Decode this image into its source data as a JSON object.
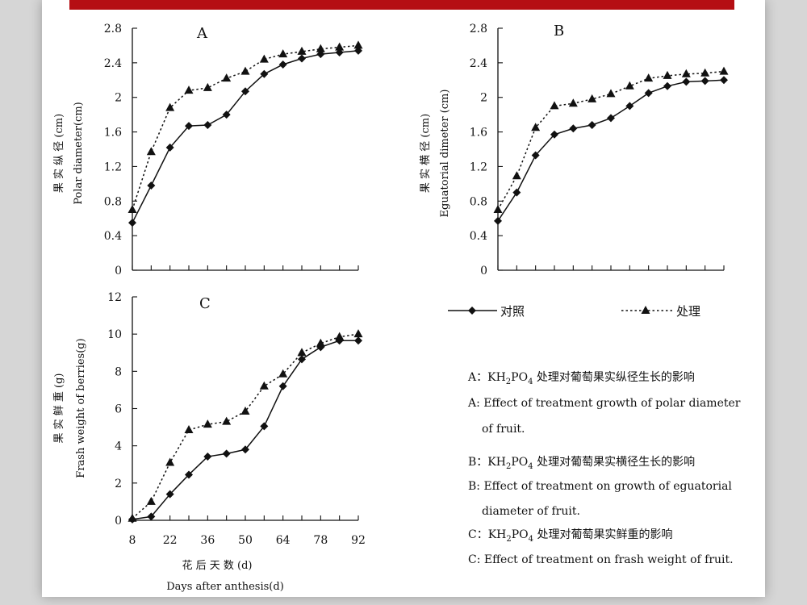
{
  "chart_data": [
    {
      "type": "line",
      "panel": "A",
      "ylabel_cn": "果 实 纵 径 (cm)",
      "ylabel_en": "Polar diameter(cm)",
      "ylim": [
        0,
        2.8
      ],
      "yticks": [
        "0",
        "0.4",
        "0.8",
        "1.2",
        "1.6",
        "2",
        "2.4",
        "2.8"
      ],
      "x": [
        8,
        15,
        22,
        29,
        36,
        43,
        50,
        57,
        64,
        71,
        78,
        85,
        92
      ],
      "series": [
        {
          "name": "对照",
          "marker": "diamond",
          "style": "solid",
          "values": [
            0.55,
            0.98,
            1.42,
            1.67,
            1.68,
            1.8,
            2.07,
            2.27,
            2.38,
            2.45,
            2.5,
            2.52,
            2.54
          ]
        },
        {
          "name": "处理",
          "marker": "triangle",
          "style": "dotted",
          "values": [
            0.7,
            1.37,
            1.88,
            2.08,
            2.11,
            2.22,
            2.3,
            2.44,
            2.5,
            2.53,
            2.56,
            2.58,
            2.6
          ]
        }
      ],
      "grid": false
    },
    {
      "type": "line",
      "panel": "B",
      "ylabel_cn": "果 实 横 径 (cm)",
      "ylabel_en": "Eguatorial dimeter (cm)",
      "ylim": [
        0,
        2.8
      ],
      "yticks": [
        "0",
        "0.4",
        "0.8",
        "1.2",
        "1.6",
        "2",
        "2.4",
        "2.8"
      ],
      "x": [
        8,
        15,
        22,
        29,
        36,
        43,
        50,
        57,
        64,
        71,
        78,
        85,
        92
      ],
      "series": [
        {
          "name": "对照",
          "marker": "diamond",
          "style": "solid",
          "values": [
            0.57,
            0.9,
            1.33,
            1.57,
            1.64,
            1.68,
            1.76,
            1.9,
            2.05,
            2.13,
            2.18,
            2.19,
            2.2
          ]
        },
        {
          "name": "处理",
          "marker": "triangle",
          "style": "dotted",
          "values": [
            0.7,
            1.09,
            1.65,
            1.9,
            1.93,
            1.98,
            2.04,
            2.13,
            2.22,
            2.25,
            2.27,
            2.28,
            2.3
          ]
        }
      ],
      "grid": false
    },
    {
      "type": "line",
      "panel": "C",
      "ylabel_cn": "果 实 鲜 重 (g)",
      "ylabel_en": "Frash weight of berries(g)",
      "xlabel_cn": "花 后 天 数 (d)",
      "xlabel_en": "Days after anthesis(d)",
      "ylim": [
        0,
        12
      ],
      "yticks": [
        "0",
        "2",
        "4",
        "6",
        "8",
        "10",
        "12"
      ],
      "xticks": [
        "8",
        "22",
        "36",
        "50",
        "64",
        "78",
        "92"
      ],
      "x": [
        8,
        15,
        22,
        29,
        36,
        43,
        50,
        57,
        64,
        71,
        78,
        85,
        92
      ],
      "series": [
        {
          "name": "对照",
          "marker": "diamond",
          "style": "solid",
          "values": [
            0.05,
            0.2,
            1.4,
            2.45,
            3.42,
            3.58,
            3.8,
            5.05,
            7.2,
            8.65,
            9.3,
            9.65,
            9.65
          ]
        },
        {
          "name": "处理",
          "marker": "triangle",
          "style": "dotted",
          "values": [
            0.1,
            1.0,
            3.1,
            4.85,
            5.15,
            5.3,
            5.85,
            7.2,
            7.85,
            9.0,
            9.5,
            9.85,
            10.0
          ]
        }
      ],
      "grid": false
    }
  ],
  "legend": [
    {
      "label": "对照",
      "marker": "diamond",
      "style": "solid"
    },
    {
      "label": "处理",
      "marker": "triangle",
      "style": "dotted"
    }
  ],
  "captions": [
    {
      "id": "a-cn",
      "parts": [
        "A：KH",
        "2",
        "PO",
        "4",
        " 处理对葡萄果实纵径生长的影响"
      ]
    },
    {
      "id": "a-en-1",
      "text": "A: Effect of treatment growth of polar diameter"
    },
    {
      "id": "a-en-2",
      "text": "of fruit."
    },
    {
      "id": "b-cn",
      "parts": [
        "B：KH",
        "2",
        "PO",
        "4",
        " 处理对葡萄果实横径生长的影响"
      ]
    },
    {
      "id": "b-en-1",
      "text": "B: Effect of treatment on growth of eguatorial"
    },
    {
      "id": "b-en-2",
      "text": "diameter of fruit."
    },
    {
      "id": "c-cn",
      "parts": [
        "C：KH",
        "2",
        "PO",
        "4",
        " 处理对葡萄果实鲜重的影响"
      ]
    },
    {
      "id": "c-en-1",
      "text": "C: Effect of treatment on frash weight of fruit."
    }
  ],
  "colors": {
    "ink": "#111111",
    "accent_bar": "#b50e13",
    "background": "#d6d6d6",
    "page": "#ffffff"
  }
}
